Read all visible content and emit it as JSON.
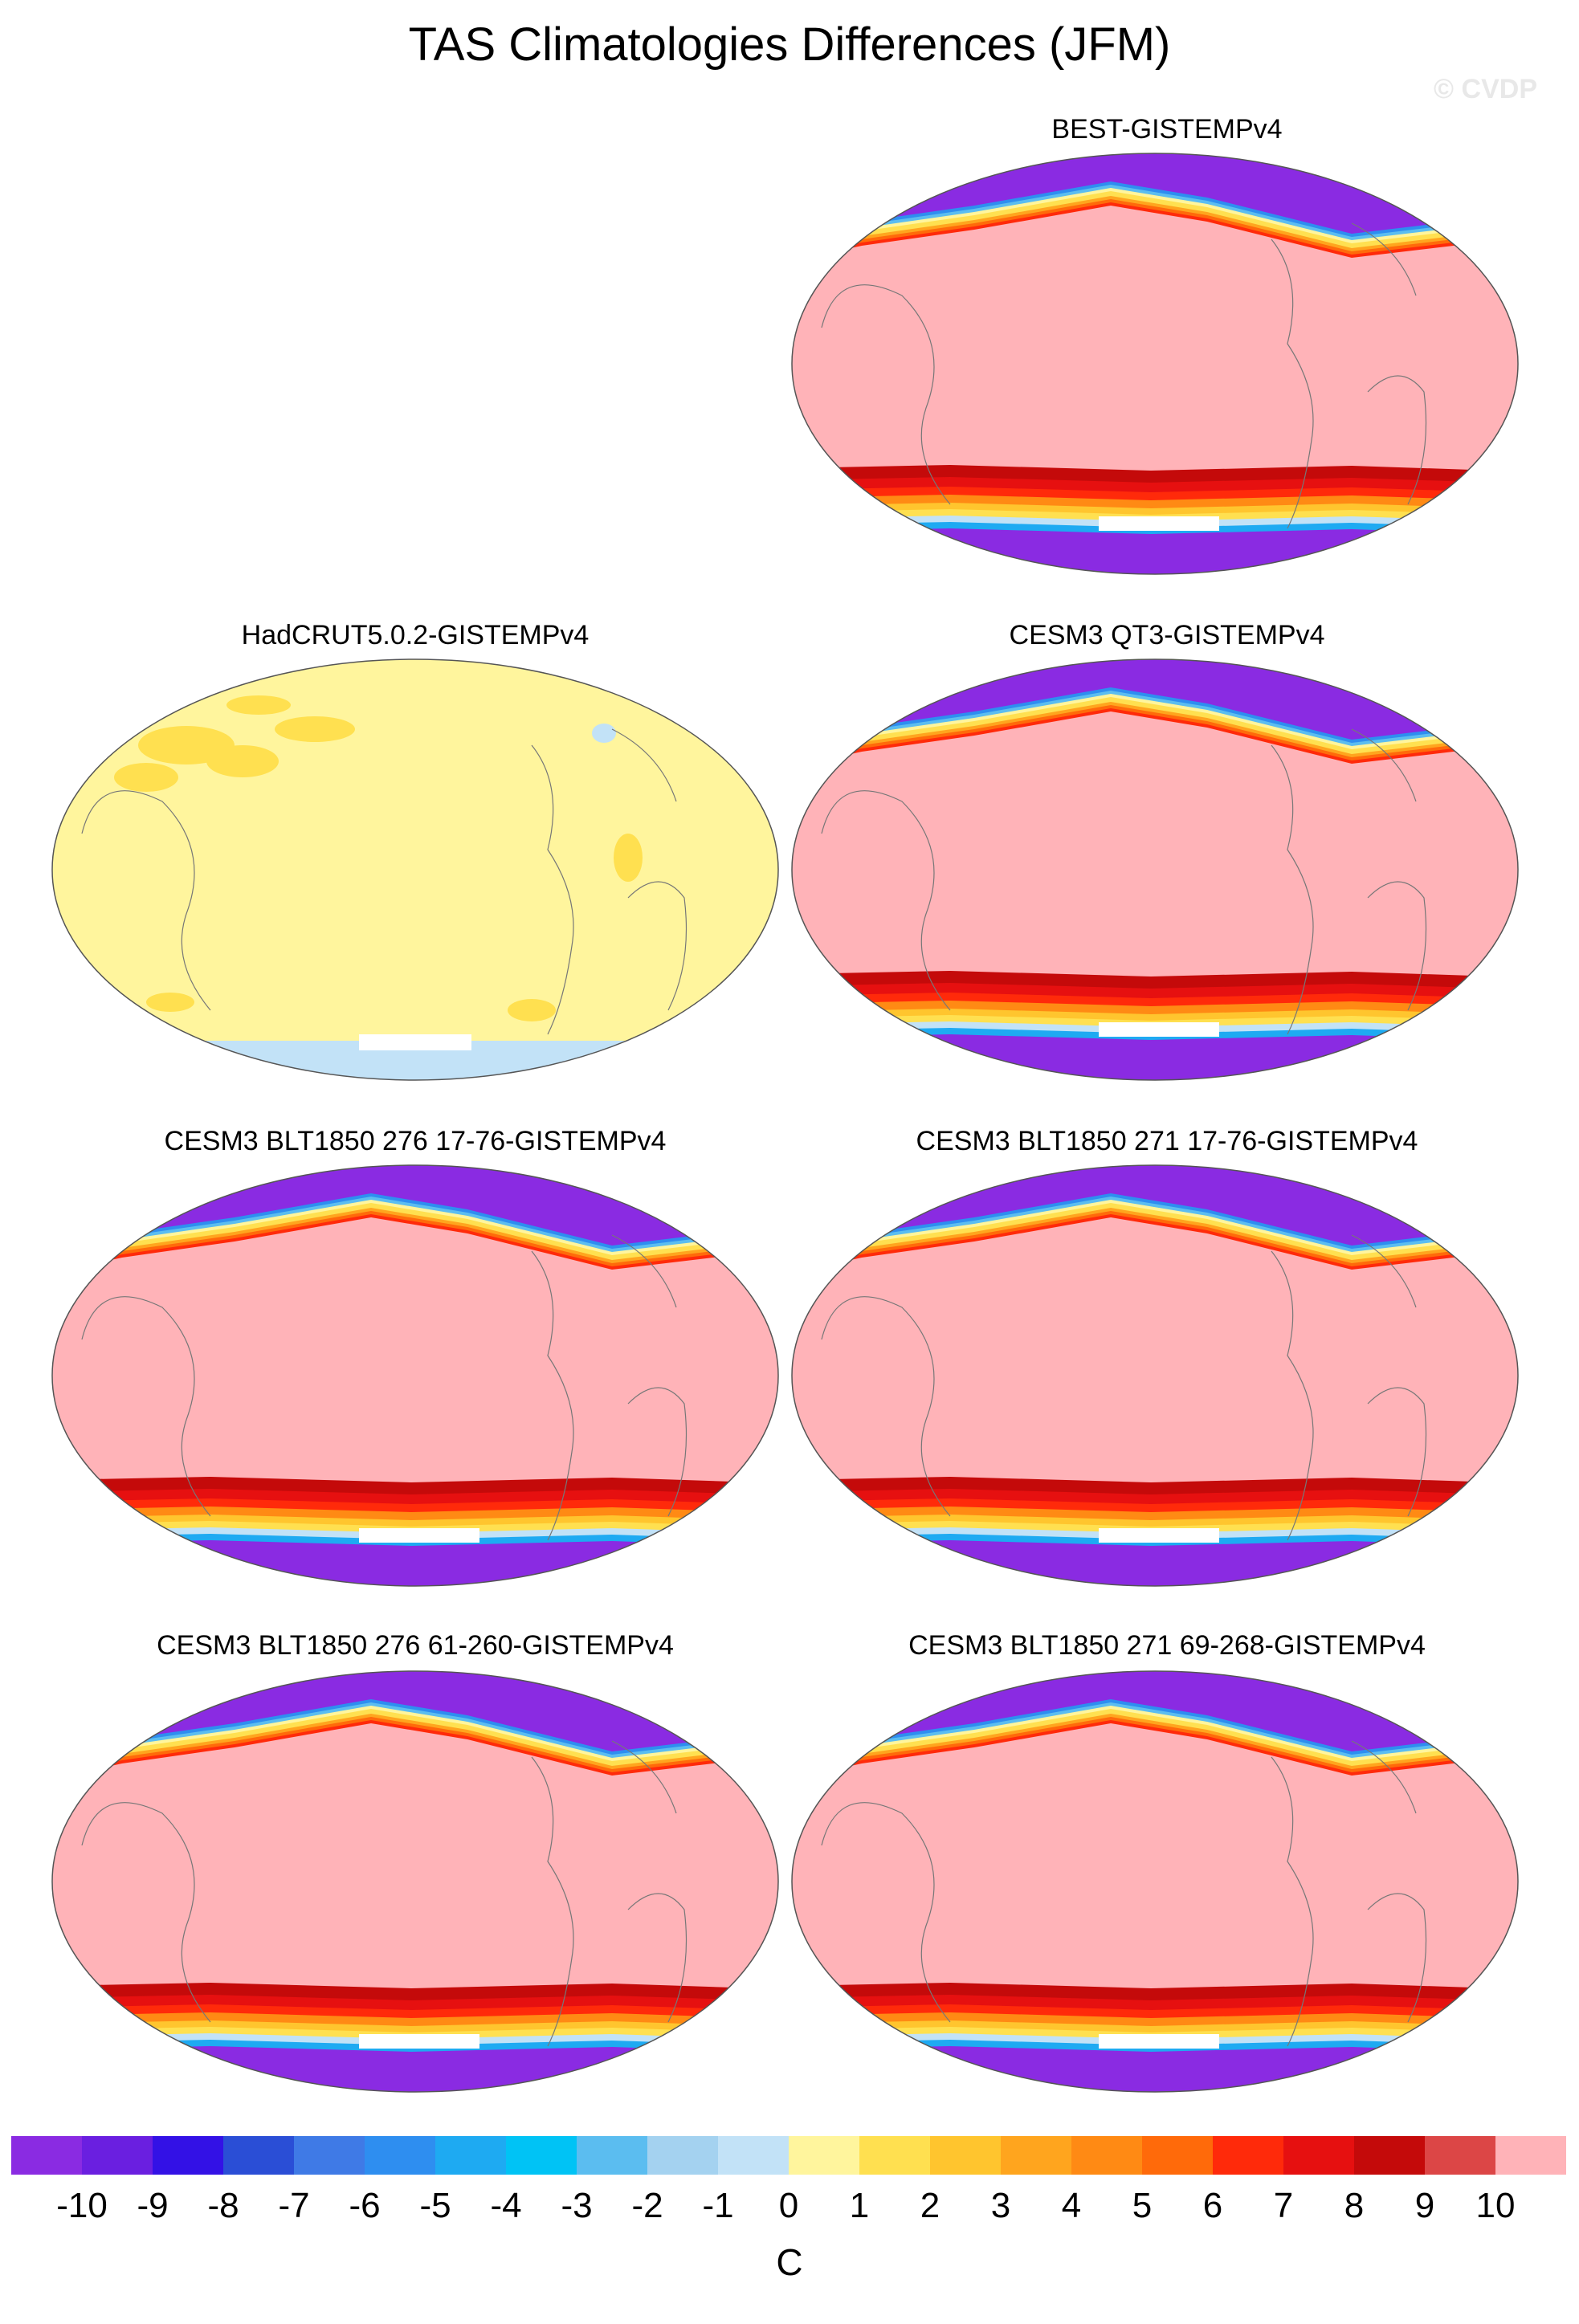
{
  "title": "TAS Climatologies Differences (JFM)",
  "watermark": "© CVDP",
  "panels": [
    {
      "id": "best",
      "label": "BEST-GISTEMPv4",
      "style": "model"
    },
    {
      "id": "hadcrut",
      "label": "HadCRUT5.0.2-GISTEMPv4",
      "style": "obs"
    },
    {
      "id": "qt3",
      "label": "CESM3 QT3-GISTEMPv4",
      "style": "model"
    },
    {
      "id": "blt276a",
      "label": "CESM3 BLT1850 276 17-76-GISTEMPv4",
      "style": "model"
    },
    {
      "id": "blt271a",
      "label": "CESM3 BLT1850 271 17-76-GISTEMPv4",
      "style": "model"
    },
    {
      "id": "blt276b",
      "label": "CESM3 BLT1850 276 61-260-GISTEMPv4",
      "style": "model"
    },
    {
      "id": "blt271b",
      "label": "CESM3 BLT1850 271 69-268-GISTEMPv4",
      "style": "model"
    }
  ],
  "colorbar": {
    "colors": [
      "#8a2be2",
      "#6a1fe0",
      "#3311e6",
      "#2a4ed6",
      "#3f7ae6",
      "#2e8ef0",
      "#1eaaf2",
      "#00c3f5",
      "#5bbdf0",
      "#a4d2f0",
      "#c2e2f7",
      "#fff59d",
      "#ffe050",
      "#ffc52e",
      "#ffa51e",
      "#ff8a14",
      "#ff6a0a",
      "#ff2a0a",
      "#e61010",
      "#c40a0a",
      "#dc4646",
      "#ffb3b8"
    ],
    "ticks": [
      "-10",
      "-9",
      "-8",
      "-7",
      "-6",
      "-5",
      "-4",
      "-3",
      "-2",
      "-1",
      "0",
      "1",
      "2",
      "3",
      "4",
      "5",
      "6",
      "7",
      "8",
      "9",
      "10"
    ],
    "units": "C"
  }
}
